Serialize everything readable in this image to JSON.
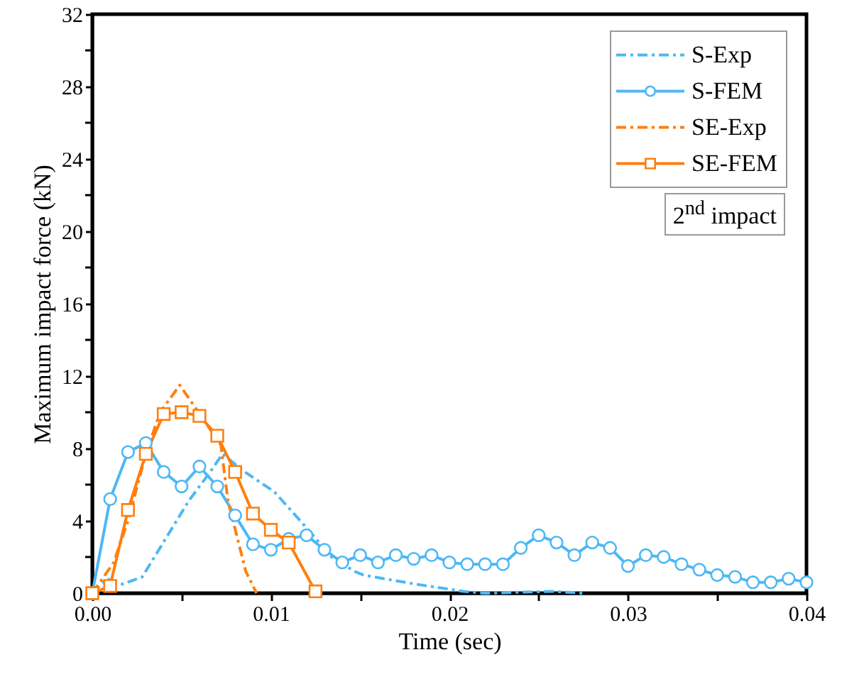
{
  "chart_data": {
    "type": "line",
    "xlabel": "Time (sec)",
    "ylabel": "Maximum impact force (kN)",
    "annotations": [
      "2$^{nd}$ impact"
    ],
    "xlim": [
      0,
      0.04
    ],
    "xticks": [
      {
        "value": 0,
        "label": "0.00"
      },
      {
        "value": 0.005,
        "label": null
      },
      {
        "value": 0.01,
        "label": "0.01"
      },
      {
        "value": 0.015,
        "label": null
      },
      {
        "value": 0.02,
        "label": "0.02"
      },
      {
        "value": 0.025,
        "label": null
      },
      {
        "value": 0.03,
        "label": "0.03"
      },
      {
        "value": 0.035,
        "label": null
      },
      {
        "value": 0.04,
        "label": "0.04"
      }
    ],
    "ylim": [
      0,
      32
    ],
    "yticks": [
      0,
      {
        "value": 2,
        "label": null
      },
      4,
      {
        "value": 6,
        "label": null
      },
      8,
      {
        "value": 10,
        "label": null
      },
      12,
      {
        "value": 14,
        "label": null
      },
      16,
      {
        "value": 18,
        "label": null
      },
      20,
      {
        "value": 22,
        "label": null
      },
      24,
      {
        "value": 26,
        "label": null
      },
      28,
      {
        "value": 30,
        "label": null
      },
      32
    ],
    "grid": false,
    "legend": "top right",
    "series": [
      {
        "name": "S-Exp",
        "color": "#4db8f5",
        "line_style": "dashed",
        "marker": "none",
        "x": [
          0,
          0.0008,
          0.0017,
          0.0028,
          0.0041,
          0.0054,
          0.0066,
          0.0073,
          0.0084,
          0.0102,
          0.0121,
          0.0134,
          0.0147,
          0.0152,
          0.0181,
          0.0208,
          0.022,
          0.0258,
          0.0275
        ],
        "values": [
          0,
          0.8,
          0.5,
          0.9,
          3.0,
          5.1,
          6.7,
          7.7,
          6.8,
          5.6,
          3.5,
          2.0,
          1.2,
          1.0,
          0.5,
          0.1,
          0,
          0.1,
          0
        ]
      },
      {
        "name": "S-FEM",
        "color": "#4db8f5",
        "line_style": "solid",
        "marker": "circle",
        "x": [
          0,
          0.001,
          0.002,
          0.003,
          0.004,
          0.005,
          0.006,
          0.007,
          0.008,
          0.009,
          0.01,
          0.011,
          0.012,
          0.013,
          0.014,
          0.015,
          0.016,
          0.017,
          0.018,
          0.019,
          0.02,
          0.021,
          0.022,
          0.023,
          0.024,
          0.025,
          0.026,
          0.027,
          0.028,
          0.029,
          0.03,
          0.031,
          0.032,
          0.033,
          0.034,
          0.035,
          0.036,
          0.037,
          0.038,
          0.039,
          0.04
        ],
        "values": [
          0,
          5.2,
          7.8,
          8.3,
          6.7,
          5.9,
          7.0,
          5.9,
          4.3,
          2.7,
          2.4,
          3.0,
          3.2,
          2.4,
          1.7,
          2.1,
          1.7,
          2.1,
          1.9,
          2.1,
          1.7,
          1.6,
          1.6,
          1.6,
          2.5,
          3.2,
          2.8,
          2.1,
          2.8,
          2.5,
          1.5,
          2.1,
          2.0,
          1.6,
          1.3,
          1.0,
          0.9,
          0.6,
          0.6,
          0.8,
          0.6
        ]
      },
      {
        "name": "SE-Exp",
        "color": "#ff7f0e",
        "line_style": "dashed",
        "marker": "none",
        "x": [
          0,
          0.0012,
          0.002,
          0.003,
          0.0038,
          0.0049,
          0.0072,
          0.0076,
          0.0086,
          0.0092
        ],
        "values": [
          0,
          1.7,
          4.0,
          7.7,
          10.0,
          11.5,
          8.2,
          5.1,
          1.2,
          0
        ]
      },
      {
        "name": "SE-FEM",
        "color": "#ff7f0e",
        "line_style": "solid",
        "marker": "square",
        "x": [
          0,
          0.001,
          0.002,
          0.003,
          0.004,
          0.005,
          0.006,
          0.007,
          0.008,
          0.009,
          0.01,
          0.011,
          0.0125
        ],
        "values": [
          0,
          0.4,
          4.6,
          7.7,
          9.9,
          10.0,
          9.8,
          8.7,
          6.7,
          4.4,
          3.5,
          2.8,
          0.1
        ]
      }
    ]
  }
}
